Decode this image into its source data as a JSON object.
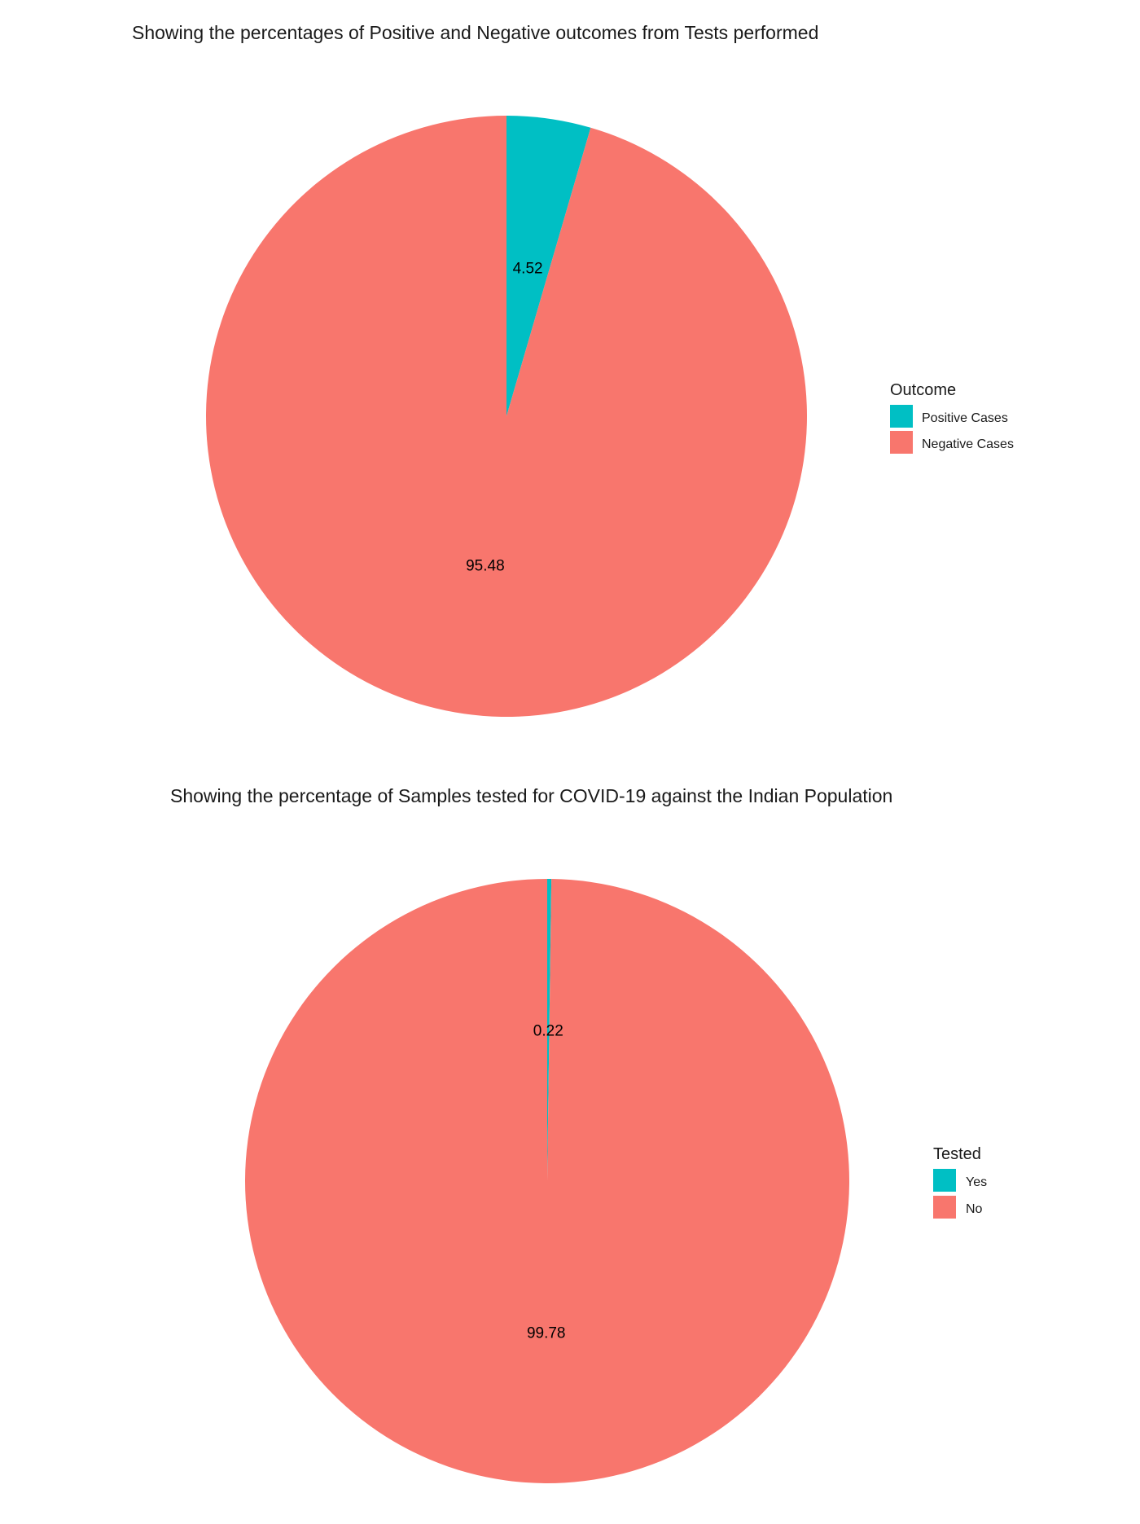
{
  "chart_data": [
    {
      "type": "pie",
      "title": "Showing the percentages of Positive and Negative outcomes from Tests performed",
      "legend_title": "Outcome",
      "legend_position": "right",
      "slices": [
        {
          "label": "Positive Cases",
          "value": 4.52,
          "value_label": "4.52",
          "color": "#00BFC4"
        },
        {
          "label": "Negative Cases",
          "value": 95.48,
          "value_label": "95.48",
          "color": "#F8766D"
        }
      ]
    },
    {
      "type": "pie",
      "title": "Showing the percentage of Samples tested for COVID-19 against the Indian Population",
      "legend_title": "Tested",
      "legend_position": "right",
      "slices": [
        {
          "label": "Yes",
          "value": 0.22,
          "value_label": "0.22",
          "color": "#00BFC4"
        },
        {
          "label": "No",
          "value": 99.78,
          "value_label": "99.78",
          "color": "#F8766D"
        }
      ]
    }
  ]
}
